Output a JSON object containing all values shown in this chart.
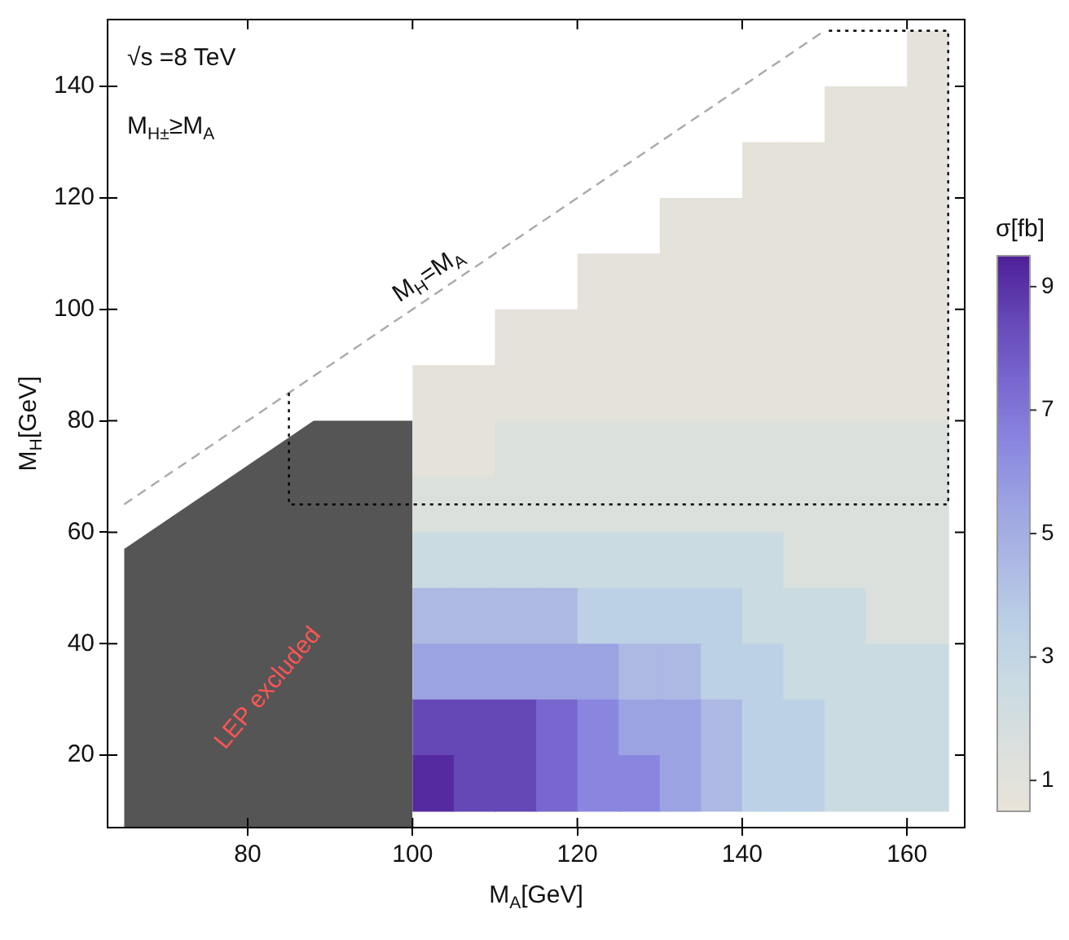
{
  "chart_data": {
    "type": "heatmap",
    "xlabel": "M$_{A}$[GeV]",
    "ylabel": "M$_{H}$[GeV]",
    "clabel": "σ[fb]",
    "xlim": [
      63,
      167
    ],
    "ylim": [
      7,
      152
    ],
    "xticks": [
      80,
      100,
      120,
      140,
      160
    ],
    "yticks": [
      20,
      40,
      60,
      80,
      100,
      120,
      140
    ],
    "clim": [
      0.5,
      9.5
    ],
    "cticks": [
      1,
      3,
      5,
      7,
      9
    ],
    "colors": [
      "#e8e3d9",
      "#dbe0dd",
      "#cbdbe2",
      "#bcd1e6",
      "#adb9e3",
      "#9ca3e2",
      "#8a86e0",
      "#7966cf",
      "#6547b6",
      "#4f1f98"
    ],
    "x": [
      102.5,
      107.5,
      112.5,
      117.5,
      122.5,
      127.5,
      132.5,
      137.5,
      142.5,
      147.5,
      152.5,
      157.5,
      162.5
    ],
    "y": [
      145,
      135,
      125,
      115,
      105,
      95,
      85,
      75,
      65,
      55,
      45,
      35,
      25,
      15
    ],
    "cells": [
      [
        null,
        null,
        null,
        null,
        null,
        null,
        null,
        null,
        null,
        null,
        null,
        null,
        0.75
      ],
      [
        null,
        null,
        null,
        null,
        null,
        null,
        null,
        null,
        null,
        null,
        0.75,
        0.75,
        0.75
      ],
      [
        null,
        null,
        null,
        null,
        null,
        null,
        null,
        null,
        0.75,
        0.75,
        0.75,
        0.75,
        0.75
      ],
      [
        null,
        null,
        null,
        null,
        null,
        null,
        0.75,
        0.75,
        0.75,
        0.75,
        0.75,
        0.75,
        0.75
      ],
      [
        null,
        null,
        null,
        null,
        0.75,
        0.75,
        0.75,
        0.75,
        0.75,
        0.75,
        0.75,
        0.75,
        0.75
      ],
      [
        null,
        null,
        0.75,
        0.75,
        0.75,
        0.75,
        0.75,
        0.75,
        0.75,
        0.75,
        0.75,
        0.75,
        0.75
      ],
      [
        0.75,
        0.75,
        0.75,
        0.75,
        0.75,
        0.75,
        0.75,
        0.75,
        0.75,
        0.75,
        0.75,
        0.75,
        0.75
      ],
      [
        0.75,
        0.75,
        1.5,
        1.5,
        1.5,
        1.5,
        1.5,
        1.5,
        1.5,
        1.5,
        1.5,
        1.5,
        1.5
      ],
      [
        1.5,
        1.5,
        1.5,
        1.5,
        1.5,
        1.5,
        1.5,
        1.5,
        1.5,
        1.5,
        1.5,
        1.5,
        1.5
      ],
      [
        2.5,
        2.5,
        2.5,
        2.5,
        2.5,
        2.5,
        2.5,
        2.5,
        2.5,
        1.5,
        1.5,
        1.5,
        1.5
      ],
      [
        4.5,
        4.5,
        4.5,
        4.5,
        3.5,
        3.5,
        3.5,
        3.5,
        2.5,
        2.5,
        2.5,
        1.5,
        1.5
      ],
      [
        5.5,
        5.5,
        5.5,
        5.5,
        5.5,
        4.5,
        4.5,
        3.5,
        3.5,
        2.5,
        2.5,
        2.5,
        2.5
      ],
      [
        8.5,
        8.5,
        8.5,
        7.5,
        6.5,
        5.5,
        5.5,
        4.5,
        3.5,
        3.5,
        2.5,
        2.5,
        2.5
      ],
      [
        9.25,
        8.5,
        8.5,
        7.5,
        6.5,
        6.5,
        5.5,
        4.5,
        3.5,
        3.5,
        2.5,
        2.5,
        2.5
      ]
    ],
    "series": [
      {
        "type": "area",
        "name": "LEP excluded",
        "color": "#555555",
        "x": [
          65,
          88,
          100
        ],
        "values": [
          57,
          80,
          80
        ]
      },
      {
        "type": "line",
        "name": "M$_{H}$=M$_{A}$",
        "color": "#aaaaaa",
        "line_style": "dashed",
        "x": [
          65,
          150
        ],
        "values": [
          65,
          150
        ]
      },
      {
        "type": "line",
        "color": "#000000",
        "line_style": "dotted",
        "x": [
          85,
          85,
          165,
          165,
          150
        ],
        "values": [
          85,
          65,
          65,
          150,
          150
        ]
      }
    ],
    "annotations": [
      "√s =8 TeV",
      "M$_{H±}$≥M$_{A}$"
    ],
    "grid": false,
    "legend": false
  }
}
